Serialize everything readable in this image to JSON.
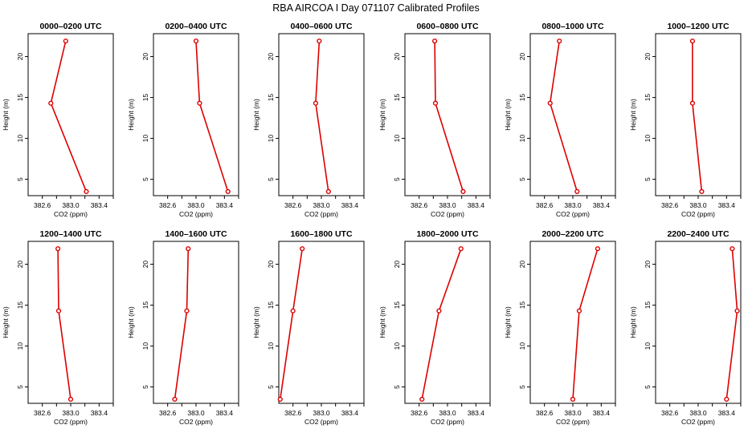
{
  "figure": {
    "title": "RBA AIRCOA I  Day 071107  Calibrated Profiles"
  },
  "colors": {
    "series": "#dd0000",
    "axis": "#000000",
    "background": "#ffffff"
  },
  "chart_data": [
    {
      "type": "line",
      "title": "0000–0200 UTC",
      "xlabel": "CO2 (ppm)",
      "ylabel": "Height (m)",
      "xlim": [
        382.4,
        383.6
      ],
      "ylim": [
        3,
        22.8
      ],
      "xticks": [
        "382.6",
        "383.0",
        "383.4"
      ],
      "yticks": [
        "5",
        "10",
        "15",
        "20"
      ],
      "x": [
        383.22,
        382.72,
        382.93
      ],
      "y": [
        3.5,
        14.3,
        21.9
      ],
      "grid": false,
      "legend": "none"
    },
    {
      "type": "line",
      "title": "0200–0400 UTC",
      "xlabel": "CO2 (ppm)",
      "ylabel": "Height (m)",
      "xlim": [
        382.4,
        383.6
      ],
      "ylim": [
        3,
        22.8
      ],
      "xticks": [
        "382.6",
        "383.0",
        "383.4"
      ],
      "yticks": [
        "5",
        "10",
        "15",
        "20"
      ],
      "x": [
        383.45,
        383.05,
        383.0
      ],
      "y": [
        3.5,
        14.3,
        21.9
      ],
      "grid": false,
      "legend": "none"
    },
    {
      "type": "line",
      "title": "0400–0600 UTC",
      "xlabel": "CO2 (ppm)",
      "ylabel": "Height (m)",
      "xlim": [
        382.4,
        383.6
      ],
      "ylim": [
        3,
        22.8
      ],
      "xticks": [
        "382.6",
        "383.0",
        "383.4"
      ],
      "yticks": [
        "5",
        "10",
        "15",
        "20"
      ],
      "x": [
        383.1,
        382.92,
        382.97
      ],
      "y": [
        3.5,
        14.3,
        21.9
      ],
      "grid": false,
      "legend": "none"
    },
    {
      "type": "line",
      "title": "0600–0800 UTC",
      "xlabel": "CO2 (ppm)",
      "ylabel": "Height (m)",
      "xlim": [
        382.4,
        383.6
      ],
      "ylim": [
        3,
        22.8
      ],
      "xticks": [
        "382.6",
        "383.0",
        "383.4"
      ],
      "yticks": [
        "5",
        "10",
        "15",
        "20"
      ],
      "x": [
        383.22,
        382.83,
        382.82
      ],
      "y": [
        3.5,
        14.3,
        21.9
      ],
      "grid": false,
      "legend": "none"
    },
    {
      "type": "line",
      "title": "0800–1000 UTC",
      "xlabel": "CO2 (ppm)",
      "ylabel": "Height (m)",
      "xlim": [
        382.4,
        383.6
      ],
      "ylim": [
        3,
        22.8
      ],
      "xticks": [
        "382.6",
        "383.0",
        "383.4"
      ],
      "yticks": [
        "5",
        "10",
        "15",
        "20"
      ],
      "x": [
        383.06,
        382.68,
        382.81
      ],
      "y": [
        3.5,
        14.3,
        21.9
      ],
      "grid": false,
      "legend": "none"
    },
    {
      "type": "line",
      "title": "1000–1200 UTC",
      "xlabel": "CO2 (ppm)",
      "ylabel": "Height (m)",
      "xlim": [
        382.4,
        383.6
      ],
      "ylim": [
        3,
        22.8
      ],
      "xticks": [
        "382.6",
        "383.0",
        "383.4"
      ],
      "yticks": [
        "5",
        "10",
        "15",
        "20"
      ],
      "x": [
        383.05,
        382.92,
        382.92
      ],
      "y": [
        3.5,
        14.3,
        21.9
      ],
      "grid": false,
      "legend": "none"
    },
    {
      "type": "line",
      "title": "1200–1400 UTC",
      "xlabel": "CO2 (ppm)",
      "ylabel": "Height (m)",
      "xlim": [
        382.4,
        383.6
      ],
      "ylim": [
        3,
        22.8
      ],
      "xticks": [
        "382.6",
        "383.0",
        "383.4"
      ],
      "yticks": [
        "5",
        "10",
        "15",
        "20"
      ],
      "x": [
        383.0,
        382.83,
        382.82
      ],
      "y": [
        3.5,
        14.3,
        21.9
      ],
      "grid": false,
      "legend": "none"
    },
    {
      "type": "line",
      "title": "1400–1600 UTC",
      "xlabel": "CO2 (ppm)",
      "ylabel": "Height (m)",
      "xlim": [
        382.4,
        383.6
      ],
      "ylim": [
        3,
        22.8
      ],
      "xticks": [
        "382.6",
        "383.0",
        "383.4"
      ],
      "yticks": [
        "5",
        "10",
        "15",
        "20"
      ],
      "x": [
        382.7,
        382.87,
        382.89
      ],
      "y": [
        3.5,
        14.3,
        21.9
      ],
      "grid": false,
      "legend": "none"
    },
    {
      "type": "line",
      "title": "1600–1800 UTC",
      "xlabel": "CO2 (ppm)",
      "ylabel": "Height (m)",
      "xlim": [
        382.4,
        383.6
      ],
      "ylim": [
        3,
        22.8
      ],
      "xticks": [
        "382.6",
        "383.0",
        "383.4"
      ],
      "yticks": [
        "5",
        "10",
        "15",
        "20"
      ],
      "x": [
        382.42,
        382.6,
        382.73
      ],
      "y": [
        3.5,
        14.3,
        21.9
      ],
      "grid": false,
      "legend": "none"
    },
    {
      "type": "line",
      "title": "1800–2000 UTC",
      "xlabel": "CO2 (ppm)",
      "ylabel": "Height (m)",
      "xlim": [
        382.4,
        383.6
      ],
      "ylim": [
        3,
        22.8
      ],
      "xticks": [
        "382.6",
        "383.0",
        "383.4"
      ],
      "yticks": [
        "5",
        "10",
        "15",
        "20"
      ],
      "x": [
        382.64,
        382.88,
        383.19
      ],
      "y": [
        3.5,
        14.3,
        21.9
      ],
      "grid": false,
      "legend": "none"
    },
    {
      "type": "line",
      "title": "2000–2200 UTC",
      "xlabel": "CO2 (ppm)",
      "ylabel": "Height (m)",
      "xlim": [
        382.4,
        383.6
      ],
      "ylim": [
        3,
        22.8
      ],
      "xticks": [
        "382.6",
        "383.0",
        "383.4"
      ],
      "yticks": [
        "5",
        "10",
        "15",
        "20"
      ],
      "x": [
        383.0,
        383.09,
        383.35
      ],
      "y": [
        3.5,
        14.3,
        21.9
      ],
      "grid": false,
      "legend": "none"
    },
    {
      "type": "line",
      "title": "2200–2400 UTC",
      "xlabel": "CO2 (ppm)",
      "ylabel": "Height (m)",
      "xlim": [
        382.4,
        383.6
      ],
      "ylim": [
        3,
        22.8
      ],
      "xticks": [
        "382.6",
        "383.0",
        "383.4"
      ],
      "yticks": [
        "5",
        "10",
        "15",
        "20"
      ],
      "x": [
        383.4,
        383.55,
        383.48
      ],
      "y": [
        3.5,
        14.3,
        21.9
      ],
      "grid": false,
      "legend": "none"
    }
  ]
}
